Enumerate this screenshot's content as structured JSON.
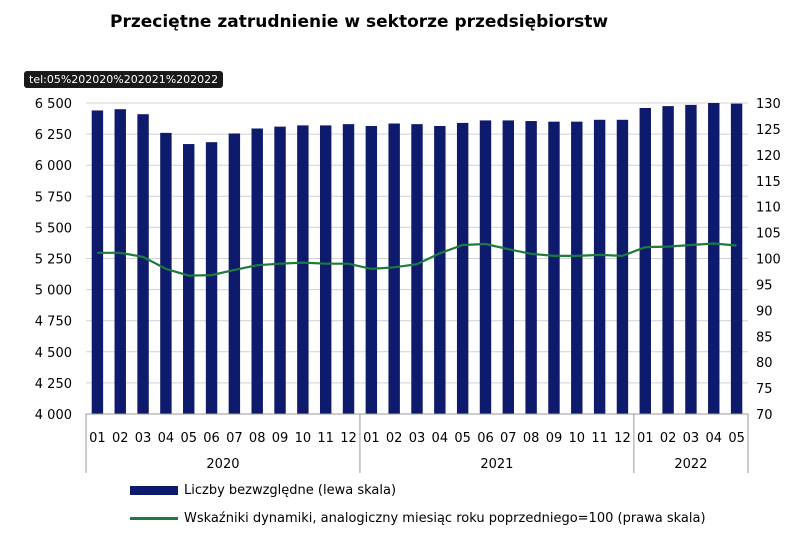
{
  "chart_data": {
    "type": "bar",
    "title": "Przeciętne zatrudnienie w sektorze przedsiębiorstw",
    "tooltip": "tel:05%202020%202021%202022",
    "categories": [
      "01",
      "02",
      "03",
      "04",
      "05",
      "06",
      "07",
      "08",
      "09",
      "10",
      "11",
      "12",
      "01",
      "02",
      "03",
      "04",
      "05",
      "06",
      "07",
      "08",
      "09",
      "10",
      "11",
      "12",
      "01",
      "02",
      "03",
      "04",
      "05"
    ],
    "groups": [
      {
        "label": "2020",
        "count": 12
      },
      {
        "label": "2021",
        "count": 12
      },
      {
        "label": "2022",
        "count": 5
      }
    ],
    "y_left": {
      "min": 4000,
      "max": 6500,
      "ticks": [
        "4 000",
        "4 250",
        "4 500",
        "4 750",
        "5 000",
        "5 250",
        "5 500",
        "5 750",
        "6 000",
        "6 250",
        "6 500"
      ]
    },
    "y_right": {
      "min": 70,
      "max": 130,
      "ticks": [
        "70",
        "75",
        "80",
        "85",
        "90",
        "95",
        "100",
        "105",
        "110",
        "115",
        "120",
        "125",
        "130"
      ]
    },
    "series": [
      {
        "name": "Liczby bezwzględne (lewa skala)",
        "axis": "left",
        "kind": "bar",
        "color": "#0e1a6b",
        "values": [
          6440,
          6450,
          6410,
          6260,
          6170,
          6185,
          6255,
          6295,
          6310,
          6320,
          6320,
          6330,
          6315,
          6335,
          6330,
          6315,
          6340,
          6360,
          6360,
          6355,
          6350,
          6350,
          6365,
          6365,
          6460,
          6475,
          6485,
          6500,
          6495
        ]
      },
      {
        "name": "Wskaźniki dynamiki, analogiczny miesiąc roku poprzedniego=100 (prawa skala)",
        "axis": "right",
        "kind": "line",
        "color": "#1e7a3c",
        "values": [
          101.1,
          101.1,
          100.3,
          98.0,
          96.7,
          96.8,
          97.8,
          98.7,
          99.0,
          99.2,
          99.0,
          99.0,
          98.0,
          98.3,
          98.9,
          101.0,
          102.6,
          102.8,
          101.8,
          100.9,
          100.5,
          100.5,
          100.7,
          100.5,
          102.2,
          102.3,
          102.6,
          102.9,
          102.5
        ]
      }
    ],
    "legend_position": "bottom",
    "grid": true
  }
}
